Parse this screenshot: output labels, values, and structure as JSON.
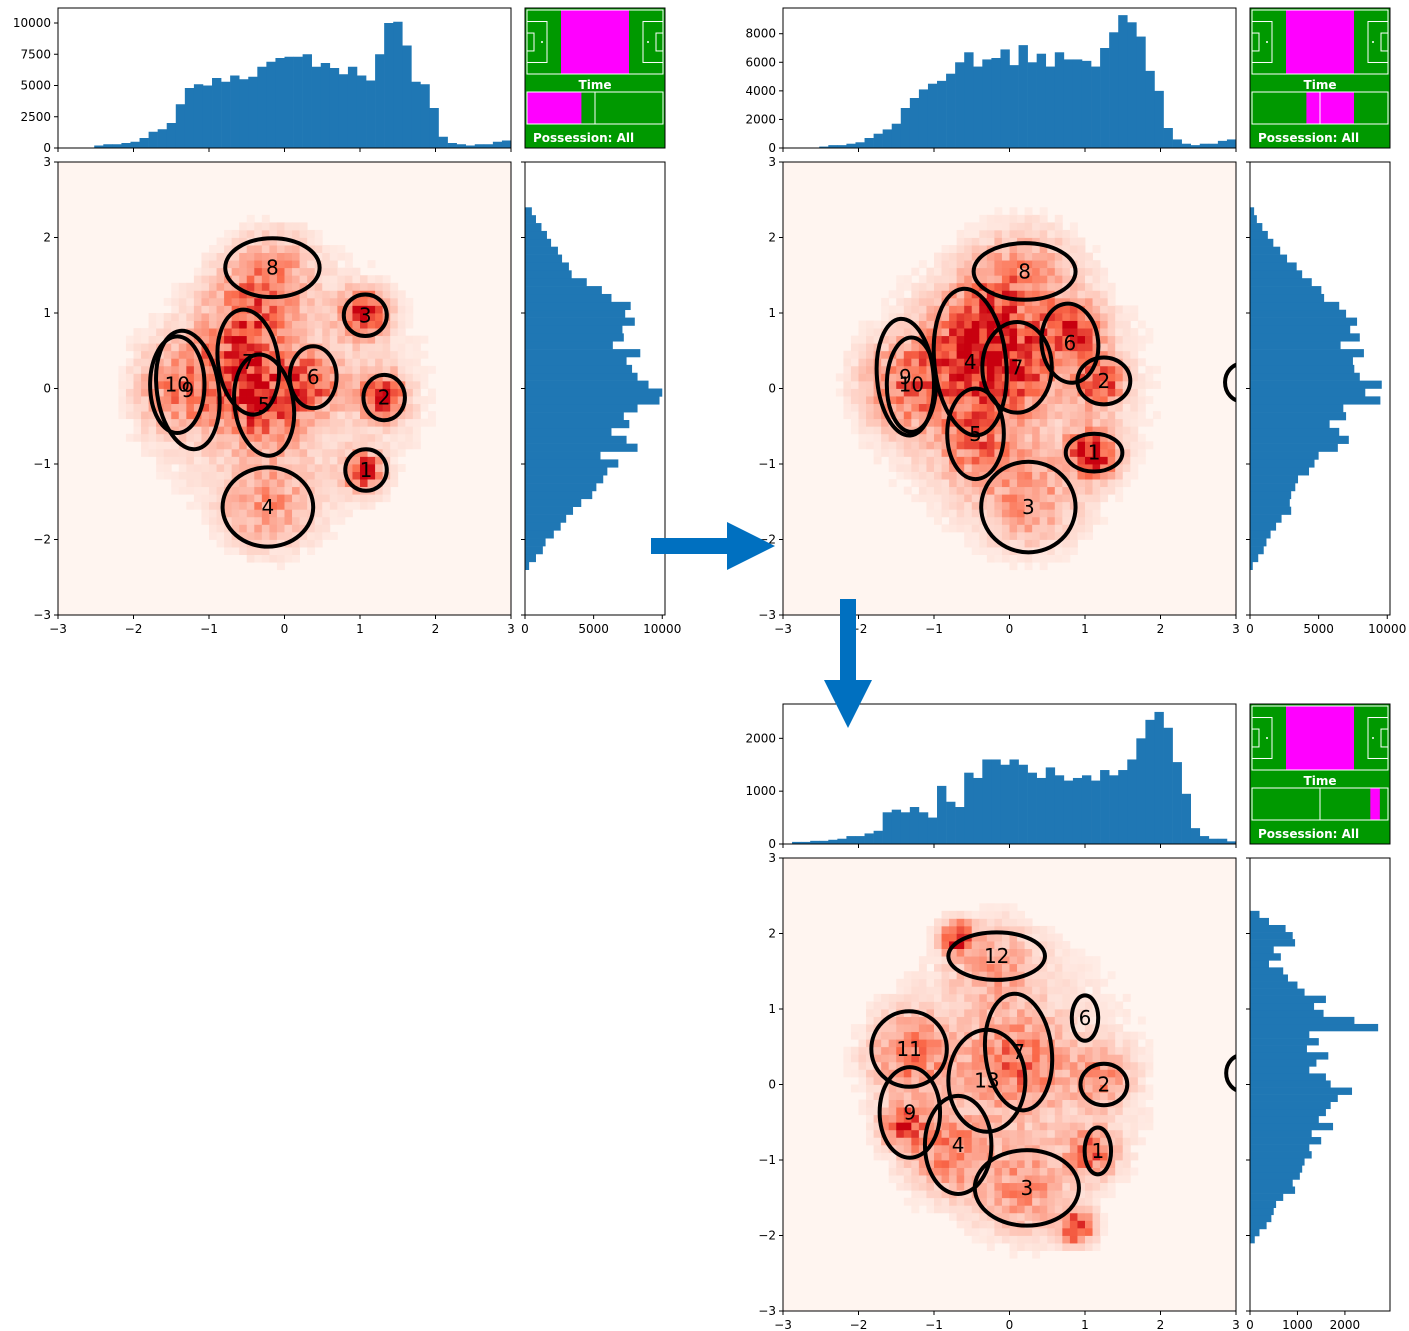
{
  "figure": {
    "arrow_color": "#0070c0",
    "axis_color": "#000000",
    "hist_color": "#1f77b4",
    "pitch_green": "#009900",
    "highlight_magenta": "#ff00ff",
    "heatmap_low": "#fff5f0",
    "heatmap_high": "#c8000f"
  },
  "chart_data": [
    {
      "type": "heatmap",
      "name": "panel-1",
      "xlim": [
        -3,
        3
      ],
      "ylim": [
        -3,
        3
      ],
      "x_ticks": [
        "−3",
        "−2",
        "−1",
        "0",
        "1",
        "2",
        "3"
      ],
      "y_ticks": [
        "−3",
        "−2",
        "−1",
        "0",
        "1",
        "2",
        "3"
      ],
      "top_hist": {
        "ticks": [
          "0",
          "2500",
          "5000",
          "7500",
          "10000"
        ],
        "tick_values": [
          0,
          2500,
          5000,
          7500,
          10000
        ],
        "ylim": [
          0,
          11200
        ],
        "bins_x": [
          -3,
          3
        ],
        "values": [
          0,
          0,
          0,
          0,
          200,
          300,
          300,
          400,
          500,
          800,
          1300,
          1500,
          2000,
          3500,
          4800,
          5100,
          5000,
          5600,
          5300,
          5800,
          5500,
          5700,
          6500,
          6900,
          7200,
          7300,
          7300,
          7500,
          6500,
          6800,
          6400,
          5900,
          6500,
          5800,
          5400,
          7500,
          10000,
          10100,
          8200,
          5300,
          5100,
          3200,
          900,
          400,
          300,
          200,
          300,
          300,
          500,
          600
        ]
      },
      "side_hist": {
        "ticks": [
          "0",
          "5000",
          "10000"
        ],
        "tick_values": [
          0,
          5000,
          10000
        ],
        "xlim": [
          0,
          10200
        ],
        "bins_y": [
          -2.4,
          2.4
        ],
        "values": [
          300,
          800,
          1300,
          1500,
          2100,
          2600,
          3000,
          3500,
          4100,
          4900,
          5200,
          5700,
          6000,
          6800,
          5500,
          8200,
          7400,
          6300,
          7600,
          7200,
          8200,
          9800,
          10000,
          9000,
          8200,
          7800,
          7400,
          8400,
          6400,
          7200,
          7100,
          8000,
          7300,
          7700,
          6300,
          5600,
          4500,
          3400,
          3200,
          2700,
          2400,
          1900,
          1600,
          1200,
          800,
          500
        ]
      },
      "inset": {
        "time_label": "Time",
        "possession_label": "Possession: All",
        "zone": [
          0.25,
          0.75
        ],
        "time_range": [
          0.0,
          0.4
        ]
      },
      "ellipses": [
        {
          "label": "1",
          "cx": 1.08,
          "cy": -1.08,
          "w": 0.55,
          "h": 0.55,
          "angle": 0
        },
        {
          "label": "2",
          "cx": 1.32,
          "cy": -0.12,
          "w": 0.55,
          "h": 0.6,
          "angle": 0
        },
        {
          "label": "3",
          "cx": 1.07,
          "cy": 0.97,
          "w": 0.57,
          "h": 0.55,
          "angle": 0
        },
        {
          "label": "4",
          "cx": -0.22,
          "cy": -1.57,
          "w": 1.2,
          "h": 1.05,
          "angle": 0
        },
        {
          "label": "5",
          "cx": -0.27,
          "cy": -0.22,
          "w": 0.78,
          "h": 1.35,
          "angle": 8
        },
        {
          "label": "6",
          "cx": 0.38,
          "cy": 0.15,
          "w": 0.62,
          "h": 0.82,
          "angle": 0
        },
        {
          "label": "7",
          "cx": -0.48,
          "cy": 0.35,
          "w": 0.8,
          "h": 1.4,
          "angle": 8
        },
        {
          "label": "8",
          "cx": -0.16,
          "cy": 1.6,
          "w": 1.25,
          "h": 0.78,
          "angle": 0
        },
        {
          "label": "9",
          "cx": -1.28,
          "cy": -0.02,
          "w": 0.82,
          "h": 1.58,
          "angle": 8
        },
        {
          "label": "10",
          "cx": -1.42,
          "cy": 0.05,
          "w": 0.72,
          "h": 1.28,
          "angle": 0
        }
      ],
      "hotspots": [
        {
          "x": 1.05,
          "y": -1.1,
          "r": 0.22,
          "v": 1.0
        },
        {
          "x": 1.3,
          "y": -0.1,
          "r": 0.28,
          "v": 0.85
        },
        {
          "x": 1.05,
          "y": 1.0,
          "r": 0.28,
          "v": 0.85
        },
        {
          "x": -0.55,
          "y": 0.3,
          "r": 0.55,
          "v": 0.5
        },
        {
          "x": -0.3,
          "y": -0.3,
          "r": 0.45,
          "v": 0.5
        },
        {
          "x": -1.35,
          "y": 0.0,
          "r": 0.55,
          "v": 0.45
        },
        {
          "x": 0.35,
          "y": 0.1,
          "r": 0.35,
          "v": 0.55
        },
        {
          "x": -0.15,
          "y": 1.55,
          "r": 0.5,
          "v": 0.35
        },
        {
          "x": -0.25,
          "y": -1.55,
          "r": 0.55,
          "v": 0.35
        },
        {
          "x": -0.5,
          "y": 1.0,
          "r": 0.5,
          "v": 0.4
        }
      ]
    },
    {
      "type": "heatmap",
      "name": "panel-2",
      "xlim": [
        -3,
        3
      ],
      "ylim": [
        -3,
        3
      ],
      "x_ticks": [
        "−3",
        "−2",
        "−1",
        "0",
        "1",
        "2",
        "3"
      ],
      "y_ticks": [
        "−3",
        "−2",
        "−1",
        "0",
        "1",
        "2",
        "3"
      ],
      "top_hist": {
        "ticks": [
          "0",
          "2000",
          "4000",
          "6000",
          "8000"
        ],
        "tick_values": [
          0,
          2000,
          4000,
          6000,
          8000
        ],
        "ylim": [
          0,
          9800
        ],
        "bins_x": [
          -3,
          3
        ],
        "values": [
          0,
          0,
          0,
          0,
          100,
          200,
          200,
          300,
          400,
          700,
          1000,
          1300,
          1700,
          2800,
          3500,
          4100,
          4500,
          4700,
          5200,
          6000,
          6700,
          5700,
          6200,
          6300,
          6900,
          5800,
          7200,
          6000,
          6600,
          5700,
          6700,
          6200,
          6200,
          6100,
          5700,
          7000,
          8100,
          9300,
          8800,
          7800,
          5400,
          4000,
          1400,
          600,
          300,
          200,
          300,
          300,
          500,
          600
        ]
      },
      "side_hist": {
        "ticks": [
          "0",
          "5000",
          "10000"
        ],
        "tick_values": [
          0,
          5000,
          10000
        ],
        "xlim": [
          0,
          10200
        ],
        "bins_y": [
          -2.4,
          2.4
        ],
        "values": [
          200,
          600,
          1000,
          1200,
          1500,
          1900,
          2300,
          3000,
          2900,
          3000,
          3300,
          3500,
          4300,
          4700,
          5000,
          6400,
          7200,
          6500,
          5800,
          7000,
          6800,
          9500,
          8400,
          9600,
          8000,
          7600,
          7500,
          8300,
          6600,
          8000,
          7300,
          7800,
          7000,
          6500,
          5400,
          5200,
          4500,
          3800,
          3400,
          2700,
          2200,
          1700,
          1300,
          900,
          500,
          300
        ]
      },
      "inset": {
        "time_label": "Time",
        "possession_label": "Possession: All",
        "zone": [
          0.25,
          0.75
        ],
        "time_range": [
          0.4,
          0.75
        ]
      },
      "ellipses": [
        {
          "label": "1",
          "cx": 1.12,
          "cy": -0.85,
          "w": 0.75,
          "h": 0.5,
          "angle": 0
        },
        {
          "label": "2",
          "cx": 1.25,
          "cy": 0.1,
          "w": 0.7,
          "h": 0.62,
          "angle": 0
        },
        {
          "label": "3",
          "cx": 0.25,
          "cy": -1.57,
          "w": 1.25,
          "h": 1.2,
          "angle": 0
        },
        {
          "label": "4",
          "cx": -0.52,
          "cy": 0.35,
          "w": 0.95,
          "h": 1.95,
          "angle": 6
        },
        {
          "label": "5",
          "cx": -0.45,
          "cy": -0.6,
          "w": 0.75,
          "h": 1.2,
          "angle": 0
        },
        {
          "label": "6",
          "cx": 0.8,
          "cy": 0.6,
          "w": 0.75,
          "h": 1.05,
          "angle": 6
        },
        {
          "label": "7",
          "cx": 0.1,
          "cy": 0.28,
          "w": 0.92,
          "h": 1.2,
          "angle": 0
        },
        {
          "label": "8",
          "cx": 0.2,
          "cy": 1.55,
          "w": 1.35,
          "h": 0.75,
          "angle": 0
        },
        {
          "label": "9",
          "cx": -1.38,
          "cy": 0.15,
          "w": 0.75,
          "h": 1.55,
          "angle": 5
        },
        {
          "label": "10",
          "cx": -1.3,
          "cy": 0.05,
          "w": 0.65,
          "h": 1.25,
          "angle": 0
        },
        {
          "label": "",
          "cx": 3.08,
          "cy": 0.08,
          "w": 0.45,
          "h": 0.5,
          "angle": 0
        }
      ],
      "hotspots": [
        {
          "x": 1.1,
          "y": -0.85,
          "r": 0.3,
          "v": 1.0
        },
        {
          "x": 0.85,
          "y": 0.75,
          "r": 0.35,
          "v": 0.85
        },
        {
          "x": 1.2,
          "y": 0.1,
          "r": 0.3,
          "v": 0.7
        },
        {
          "x": -0.5,
          "y": 0.4,
          "r": 0.6,
          "v": 0.55
        },
        {
          "x": 0.05,
          "y": 0.3,
          "r": 0.5,
          "v": 0.55
        },
        {
          "x": -1.35,
          "y": 0.05,
          "r": 0.55,
          "v": 0.5
        },
        {
          "x": -0.45,
          "y": -0.7,
          "r": 0.5,
          "v": 0.45
        },
        {
          "x": 0.25,
          "y": -1.5,
          "r": 0.6,
          "v": 0.35
        },
        {
          "x": 0.2,
          "y": 1.5,
          "r": 0.6,
          "v": 0.35
        },
        {
          "x": -0.3,
          "y": 1.0,
          "r": 0.55,
          "v": 0.4
        }
      ]
    },
    {
      "type": "heatmap",
      "name": "panel-3",
      "xlim": [
        -3,
        3
      ],
      "ylim": [
        -3,
        3
      ],
      "x_ticks": [
        "−3",
        "−2",
        "−1",
        "0",
        "1",
        "2",
        "3"
      ],
      "y_ticks": [
        "−3",
        "−2",
        "−1",
        "0",
        "1",
        "2",
        "3"
      ],
      "top_hist": {
        "ticks": [
          "0",
          "1000",
          "2000"
        ],
        "tick_values": [
          0,
          1000,
          2000
        ],
        "ylim": [
          0,
          2650
        ],
        "bins_x": [
          -3,
          3
        ],
        "values": [
          0,
          40,
          40,
          60,
          60,
          80,
          100,
          150,
          150,
          200,
          250,
          600,
          650,
          600,
          700,
          600,
          500,
          1100,
          800,
          700,
          1350,
          1250,
          1600,
          1600,
          1500,
          1600,
          1500,
          1350,
          1250,
          1450,
          1300,
          1200,
          1250,
          1300,
          1200,
          1400,
          1300,
          1400,
          1600,
          2000,
          2350,
          2500,
          2200,
          1550,
          950,
          300,
          150,
          100,
          100,
          50
        ]
      },
      "side_hist": {
        "ticks": [
          "0",
          "1000",
          "2000"
        ],
        "tick_values": [
          0,
          1000,
          2000
        ],
        "xlim": [
          0,
          2950
        ],
        "bins_y": [
          -2.1,
          2.3
        ],
        "values": [
          100,
          200,
          350,
          450,
          500,
          550,
          700,
          950,
          900,
          1050,
          1100,
          1150,
          1300,
          1250,
          1500,
          1300,
          1750,
          1450,
          1600,
          1700,
          1850,
          2150,
          1700,
          1600,
          1250,
          1400,
          1650,
          1200,
          1450,
          1250,
          2700,
          2200,
          1550,
          1350,
          1600,
          1150,
          1000,
          800,
          700,
          400,
          650,
          500,
          950,
          900,
          750,
          400,
          200
        ]
      },
      "inset": {
        "time_label": "Time",
        "possession_label": "Possession: All",
        "zone": [
          0.25,
          0.75
        ],
        "time_range": [
          0.87,
          0.94
        ]
      },
      "ellipses": [
        {
          "label": "1",
          "cx": 1.17,
          "cy": -0.88,
          "w": 0.35,
          "h": 0.62,
          "angle": 0
        },
        {
          "label": "2",
          "cx": 1.25,
          "cy": 0.0,
          "w": 0.62,
          "h": 0.55,
          "angle": 0
        },
        {
          "label": "3",
          "cx": 0.23,
          "cy": -1.37,
          "w": 1.38,
          "h": 1.0,
          "angle": 0
        },
        {
          "label": "4",
          "cx": -0.68,
          "cy": -0.8,
          "w": 0.88,
          "h": 1.3,
          "angle": 0
        },
        {
          "label": "6",
          "cx": 1.0,
          "cy": 0.88,
          "w": 0.35,
          "h": 0.6,
          "angle": 0
        },
        {
          "label": "7",
          "cx": 0.12,
          "cy": 0.43,
          "w": 0.88,
          "h": 1.55,
          "angle": 6
        },
        {
          "label": "9",
          "cx": -1.32,
          "cy": -0.37,
          "w": 0.8,
          "h": 1.2,
          "angle": 0
        },
        {
          "label": "11",
          "cx": -1.33,
          "cy": 0.47,
          "w": 1.0,
          "h": 1.0,
          "angle": 0
        },
        {
          "label": "12",
          "cx": -0.17,
          "cy": 1.7,
          "w": 1.28,
          "h": 0.63,
          "angle": 0
        },
        {
          "label": "13",
          "cx": -0.3,
          "cy": 0.05,
          "w": 1.02,
          "h": 1.35,
          "angle": 0
        },
        {
          "label": "",
          "cx": 3.08,
          "cy": 0.15,
          "w": 0.42,
          "h": 0.48,
          "angle": 0
        }
      ],
      "hotspots": [
        {
          "x": -0.7,
          "y": 1.95,
          "r": 0.2,
          "v": 0.9
        },
        {
          "x": -1.4,
          "y": -0.55,
          "r": 0.25,
          "v": 0.8
        },
        {
          "x": 0.9,
          "y": -1.9,
          "r": 0.2,
          "v": 0.85
        },
        {
          "x": -0.8,
          "y": -0.9,
          "r": 0.45,
          "v": 0.45
        },
        {
          "x": 0.1,
          "y": 0.3,
          "r": 0.55,
          "v": 0.4
        },
        {
          "x": -1.3,
          "y": 0.4,
          "r": 0.5,
          "v": 0.45
        },
        {
          "x": 1.1,
          "y": -0.9,
          "r": 0.3,
          "v": 0.55
        },
        {
          "x": 0.2,
          "y": -1.4,
          "r": 0.55,
          "v": 0.35
        },
        {
          "x": -0.2,
          "y": 1.6,
          "r": 0.55,
          "v": 0.3
        },
        {
          "x": 1.2,
          "y": 0.1,
          "r": 0.35,
          "v": 0.4
        }
      ]
    }
  ]
}
